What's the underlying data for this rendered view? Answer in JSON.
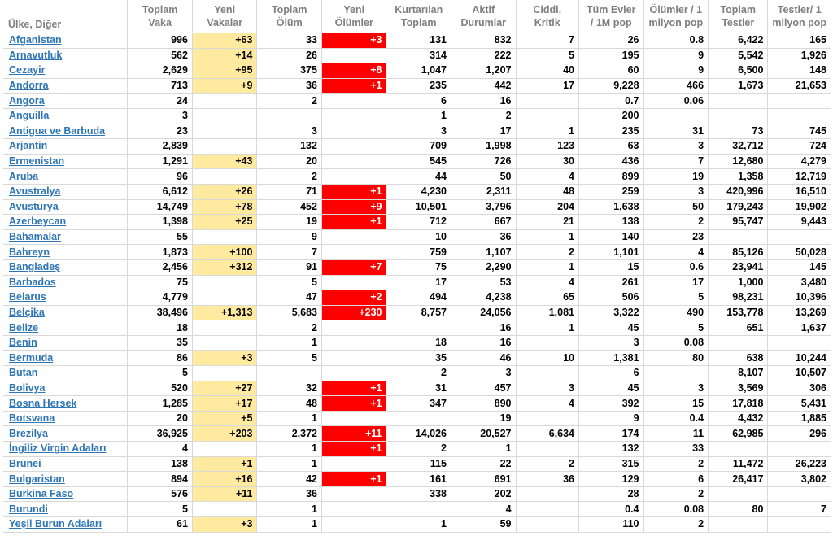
{
  "headers": {
    "country": "Ülke, Diğer",
    "total_cases": [
      "Toplam",
      "Vaka"
    ],
    "new_cases": [
      "Yeni",
      "Vakalar"
    ],
    "total_deaths": [
      "Toplam",
      "Ölüm"
    ],
    "new_deaths": [
      "Yeni",
      "Ölümler"
    ],
    "recovered": [
      "Kurtarılan",
      "Toplam"
    ],
    "active": [
      "Aktif",
      "Durumlar"
    ],
    "critical": [
      "Ciddi,",
      "Kritik"
    ],
    "cases_per_m": [
      "Tüm Evler",
      "/ 1M pop"
    ],
    "deaths_per_m": [
      "Ölümler / 1",
      "milyon pop"
    ],
    "tests": [
      "Toplam",
      "Testler"
    ],
    "tests_per_m": [
      "Testler/ 1",
      "milyon pop"
    ]
  },
  "colors": {
    "new_cases_highlight": "#ffeaa0",
    "new_deaths_highlight": "#ff0000",
    "link": "#2e75b6",
    "header_text": "#7f7f7f"
  },
  "rows": [
    [
      "Afganistan",
      "996",
      "+63",
      "33",
      "+3",
      "131",
      "832",
      "7",
      "26",
      "0.8",
      "6,422",
      "165"
    ],
    [
      "Arnavutluk",
      "562",
      "+14",
      "26",
      "",
      "314",
      "222",
      "5",
      "195",
      "9",
      "5,542",
      "1,926"
    ],
    [
      "Cezayir",
      "2,629",
      "+95",
      "375",
      "+8",
      "1,047",
      "1,207",
      "40",
      "60",
      "9",
      "6,500",
      "148"
    ],
    [
      "Andorra",
      "713",
      "+9",
      "36",
      "+1",
      "235",
      "442",
      "17",
      "9,228",
      "466",
      "1,673",
      "21,653"
    ],
    [
      "Angora",
      "24",
      "",
      "2",
      "",
      "6",
      "16",
      "",
      "0.7",
      "0.06",
      "",
      ""
    ],
    [
      "Anguilla",
      "3",
      "",
      "",
      "",
      "1",
      "2",
      "",
      "200",
      "",
      "",
      ""
    ],
    [
      "Antigua ve Barbuda",
      "23",
      "",
      "3",
      "",
      "3",
      "17",
      "1",
      "235",
      "31",
      "73",
      "745"
    ],
    [
      "Arjantin",
      "2,839",
      "",
      "132",
      "",
      "709",
      "1,998",
      "123",
      "63",
      "3",
      "32,712",
      "724"
    ],
    [
      "Ermenistan",
      "1,291",
      "+43",
      "20",
      "",
      "545",
      "726",
      "30",
      "436",
      "7",
      "12,680",
      "4,279"
    ],
    [
      "Aruba",
      "96",
      "",
      "2",
      "",
      "44",
      "50",
      "4",
      "899",
      "19",
      "1,358",
      "12,719"
    ],
    [
      "Avustralya",
      "6,612",
      "+26",
      "71",
      "+1",
      "4,230",
      "2,311",
      "48",
      "259",
      "3",
      "420,996",
      "16,510"
    ],
    [
      "Avusturya",
      "14,749",
      "+78",
      "452",
      "+9",
      "10,501",
      "3,796",
      "204",
      "1,638",
      "50",
      "179,243",
      "19,902"
    ],
    [
      "Azerbeycan",
      "1,398",
      "+25",
      "19",
      "+1",
      "712",
      "667",
      "21",
      "138",
      "2",
      "95,747",
      "9,443"
    ],
    [
      "Bahamalar",
      "55",
      "",
      "9",
      "",
      "10",
      "36",
      "1",
      "140",
      "23",
      "",
      ""
    ],
    [
      "Bahreyn",
      "1,873",
      "+100",
      "7",
      "",
      "759",
      "1,107",
      "2",
      "1,101",
      "4",
      "85,126",
      "50,028"
    ],
    [
      "Bangladeş",
      "2,456",
      "+312",
      "91",
      "+7",
      "75",
      "2,290",
      "1",
      "15",
      "0.6",
      "23,941",
      "145"
    ],
    [
      "Barbados",
      "75",
      "",
      "5",
      "",
      "17",
      "53",
      "4",
      "261",
      "17",
      "1,000",
      "3,480"
    ],
    [
      "Belarus",
      "4,779",
      "",
      "47",
      "+2",
      "494",
      "4,238",
      "65",
      "506",
      "5",
      "98,231",
      "10,396"
    ],
    [
      "Belçika",
      "38,496",
      "+1,313",
      "5,683",
      "+230",
      "8,757",
      "24,056",
      "1,081",
      "3,322",
      "490",
      "153,778",
      "13,269"
    ],
    [
      "Belize",
      "18",
      "",
      "2",
      "",
      "",
      "16",
      "1",
      "45",
      "5",
      "651",
      "1,637"
    ],
    [
      "Benin",
      "35",
      "",
      "1",
      "",
      "18",
      "16",
      "",
      "3",
      "0.08",
      "",
      ""
    ],
    [
      "Bermuda",
      "86",
      "+3",
      "5",
      "",
      "35",
      "46",
      "10",
      "1,381",
      "80",
      "638",
      "10,244"
    ],
    [
      "Butan",
      "5",
      "",
      "",
      "",
      "2",
      "3",
      "",
      "6",
      "",
      "8,107",
      "10,507"
    ],
    [
      "Bolivya",
      "520",
      "+27",
      "32",
      "+1",
      "31",
      "457",
      "3",
      "45",
      "3",
      "3,569",
      "306"
    ],
    [
      "Bosna Hersek",
      "1,285",
      "+17",
      "48",
      "+1",
      "347",
      "890",
      "4",
      "392",
      "15",
      "17,818",
      "5,431"
    ],
    [
      "Botsvana",
      "20",
      "+5",
      "1",
      "",
      "",
      "19",
      "",
      "9",
      "0.4",
      "4,432",
      "1,885"
    ],
    [
      "Brezilya",
      "36,925",
      "+203",
      "2,372",
      "+11",
      "14,026",
      "20,527",
      "6,634",
      "174",
      "11",
      "62,985",
      "296"
    ],
    [
      "İngiliz Virgin Adaları",
      "4",
      "",
      "1",
      "+1",
      "2",
      "1",
      "",
      "132",
      "33",
      "",
      ""
    ],
    [
      "Brunei",
      "138",
      "+1",
      "1",
      "",
      "115",
      "22",
      "2",
      "315",
      "2",
      "11,472",
      "26,223"
    ],
    [
      "Bulgaristan",
      "894",
      "+16",
      "42",
      "+1",
      "161",
      "691",
      "36",
      "129",
      "6",
      "26,417",
      "3,802"
    ],
    [
      "Burkina Faso",
      "576",
      "+11",
      "36",
      "",
      "338",
      "202",
      "",
      "28",
      "2",
      "",
      ""
    ],
    [
      "Burundi",
      "5",
      "",
      "1",
      "",
      "",
      "4",
      "",
      "0.4",
      "0.08",
      "80",
      "7"
    ],
    [
      "Yeşil Burun Adaları",
      "61",
      "+3",
      "1",
      "",
      "1",
      "59",
      "",
      "110",
      "2",
      "",
      ""
    ]
  ]
}
